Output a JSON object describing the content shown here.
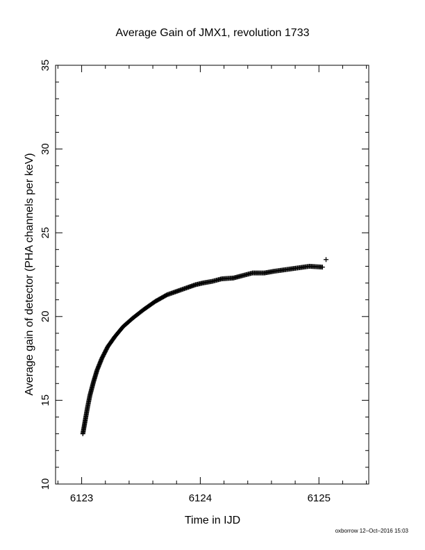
{
  "chart_data": {
    "type": "scatter",
    "title": "Average Gain of JMX1, revolution 1733",
    "xlabel": "Time in IJD",
    "ylabel": "Average gain of detector (PHA channels per keV)",
    "xlim": [
      6122.78,
      6125.42
    ],
    "ylim": [
      10,
      35
    ],
    "xticks": [
      6123,
      6124,
      6125
    ],
    "yticks": [
      10,
      15,
      20,
      25,
      30,
      35
    ],
    "marker": "+",
    "marker_color": "#000000",
    "grid": false,
    "series": [
      {
        "points": [
          [
            6123.01,
            13.0
          ],
          [
            6123.03,
            13.8
          ],
          [
            6123.05,
            14.6
          ],
          [
            6123.07,
            15.3
          ],
          [
            6123.1,
            16.1
          ],
          [
            6123.13,
            16.8
          ],
          [
            6123.17,
            17.5
          ],
          [
            6123.22,
            18.2
          ],
          [
            6123.28,
            18.8
          ],
          [
            6123.35,
            19.4
          ],
          [
            6123.43,
            19.9
          ],
          [
            6123.52,
            20.4
          ],
          [
            6123.62,
            20.9
          ],
          [
            6123.72,
            21.3
          ],
          [
            6123.84,
            21.6
          ],
          [
            6123.96,
            21.9
          ],
          [
            6124.02,
            22.0
          ],
          [
            6124.1,
            22.1
          ],
          [
            6124.18,
            22.25
          ],
          [
            6124.28,
            22.3
          ],
          [
            6124.36,
            22.45
          ],
          [
            6124.44,
            22.6
          ],
          [
            6124.54,
            22.6
          ],
          [
            6124.62,
            22.7
          ],
          [
            6124.72,
            22.8
          ],
          [
            6124.82,
            22.9
          ],
          [
            6124.92,
            23.0
          ],
          [
            6125.03,
            22.95
          ],
          [
            6125.06,
            23.4
          ]
        ]
      }
    ]
  },
  "footer": {
    "credit": "oxborrow 12–Oct–2016 15:03"
  }
}
